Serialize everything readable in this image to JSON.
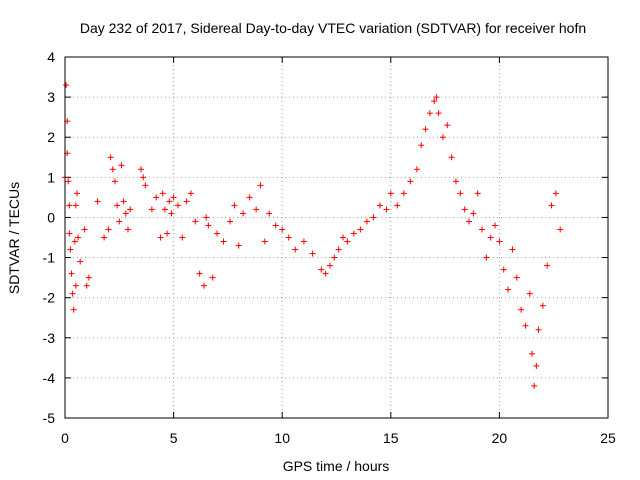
{
  "chart_data": {
    "type": "scatter",
    "title": "Day 232 of 2017, Sidereal Day-to-day VTEC variation (SDTVAR) for receiver hofn",
    "xlabel": "GPS time / hours",
    "ylabel": "SDTVAR / TECUs",
    "xlim": [
      0,
      25
    ],
    "ylim": [
      -5,
      4
    ],
    "xticks": [
      0,
      5,
      10,
      15,
      20,
      25
    ],
    "yticks": [
      -5,
      -4,
      -3,
      -2,
      -1,
      0,
      1,
      2,
      3,
      4
    ],
    "grid": true,
    "marker": "+",
    "color": "#ff0000",
    "series": [
      {
        "name": "SDTVAR",
        "x": [
          0.0,
          0.05,
          0.1,
          0.1,
          0.15,
          0.2,
          0.2,
          0.25,
          0.3,
          0.35,
          0.4,
          0.45,
          0.5,
          0.5,
          0.55,
          0.6,
          0.7,
          0.9,
          1.0,
          1.1,
          1.5,
          1.8,
          2.0,
          2.1,
          2.2,
          2.3,
          2.4,
          2.5,
          2.6,
          2.7,
          2.8,
          2.9,
          3.0,
          3.5,
          3.6,
          3.7,
          4.0,
          4.2,
          4.4,
          4.5,
          4.6,
          4.7,
          4.8,
          4.9,
          5.0,
          5.2,
          5.4,
          5.6,
          5.8,
          6.0,
          6.2,
          6.4,
          6.5,
          6.6,
          6.8,
          7.0,
          7.3,
          7.6,
          7.8,
          8.0,
          8.2,
          8.5,
          8.8,
          9.0,
          9.2,
          9.4,
          9.7,
          10.0,
          10.3,
          10.6,
          11.0,
          11.4,
          11.8,
          12.0,
          12.2,
          12.4,
          12.6,
          12.8,
          13.0,
          13.3,
          13.6,
          13.9,
          14.2,
          14.5,
          14.8,
          15.0,
          15.3,
          15.6,
          15.9,
          16.2,
          16.4,
          16.6,
          16.8,
          17.0,
          17.1,
          17.2,
          17.4,
          17.6,
          17.8,
          18.0,
          18.2,
          18.4,
          18.6,
          18.8,
          19.0,
          19.2,
          19.4,
          19.6,
          19.8,
          20.0,
          20.2,
          20.4,
          20.6,
          20.8,
          21.0,
          21.2,
          21.4,
          21.5,
          21.6,
          21.7,
          21.8,
          22.0,
          22.2,
          22.4,
          22.6,
          22.8
        ],
        "y": [
          1.0,
          3.3,
          2.4,
          1.6,
          0.9,
          0.3,
          -0.4,
          -0.8,
          -1.4,
          -1.9,
          -2.3,
          -0.6,
          -1.7,
          0.3,
          0.6,
          -0.5,
          -1.1,
          -0.3,
          -1.7,
          -1.5,
          0.4,
          -0.5,
          -0.3,
          1.5,
          1.2,
          0.9,
          0.3,
          -0.1,
          1.3,
          0.4,
          0.1,
          -0.3,
          0.2,
          1.2,
          1.0,
          0.8,
          0.2,
          0.5,
          -0.5,
          0.6,
          0.2,
          -0.4,
          0.4,
          0.1,
          0.5,
          0.3,
          -0.5,
          0.4,
          0.6,
          -0.1,
          -1.4,
          -1.7,
          0.0,
          -0.2,
          -1.5,
          -0.4,
          -0.6,
          -0.1,
          0.3,
          -0.7,
          0.1,
          0.5,
          0.2,
          0.8,
          -0.6,
          0.1,
          -0.2,
          -0.3,
          -0.5,
          -0.8,
          -0.6,
          -0.9,
          -1.3,
          -1.4,
          -1.2,
          -1.0,
          -0.8,
          -0.5,
          -0.6,
          -0.4,
          -0.3,
          -0.1,
          0.0,
          0.3,
          0.2,
          0.6,
          0.3,
          0.6,
          0.9,
          1.2,
          1.8,
          2.2,
          2.6,
          2.9,
          3.0,
          2.6,
          2.0,
          2.3,
          1.5,
          0.9,
          0.6,
          0.2,
          -0.1,
          0.1,
          0.6,
          -0.3,
          -1.0,
          -0.5,
          -0.2,
          -0.6,
          -1.3,
          -1.8,
          -0.8,
          -1.5,
          -2.3,
          -2.7,
          -1.9,
          -3.4,
          -4.2,
          -3.7,
          -2.8,
          -2.2,
          -1.2,
          0.3,
          0.6,
          -0.3
        ]
      }
    ]
  }
}
